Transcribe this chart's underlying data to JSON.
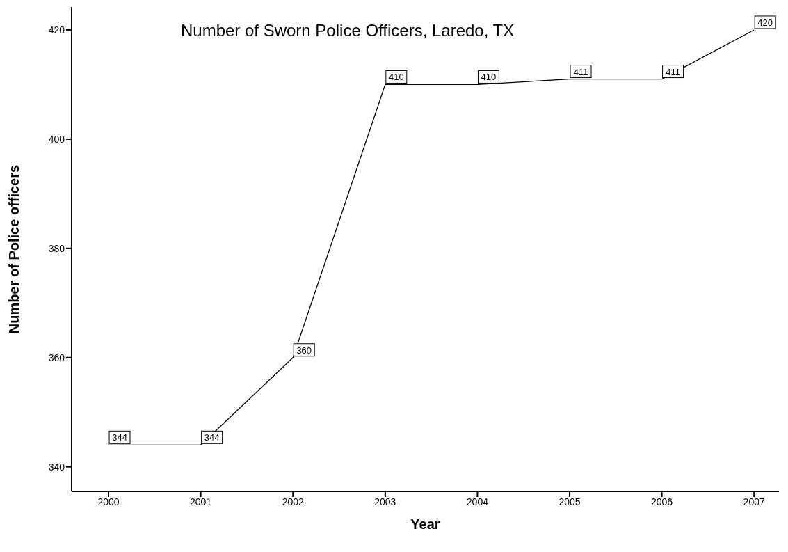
{
  "chart_data": {
    "type": "line",
    "title": "Number of Sworn Police Officers, Laredo, TX",
    "xlabel": "Year",
    "ylabel": "Number of Police officers",
    "x": [
      2000,
      2001,
      2002,
      2003,
      2004,
      2005,
      2006,
      2007
    ],
    "series": [
      {
        "color": "#000000",
        "values": [
          344,
          344,
          360,
          410,
          410,
          411,
          411,
          420
        ]
      }
    ],
    "xlim": [
      1999.6,
      2007.27
    ],
    "xticks": [
      2000,
      2001,
      2002,
      2003,
      2004,
      2005,
      2006,
      2007
    ],
    "ylim": [
      335.5,
      424.2
    ],
    "yticks": [
      340,
      360,
      380,
      400,
      420
    ],
    "data_labels": true,
    "grid": false,
    "legend": false,
    "marker": "none",
    "line_style": "solid"
  }
}
